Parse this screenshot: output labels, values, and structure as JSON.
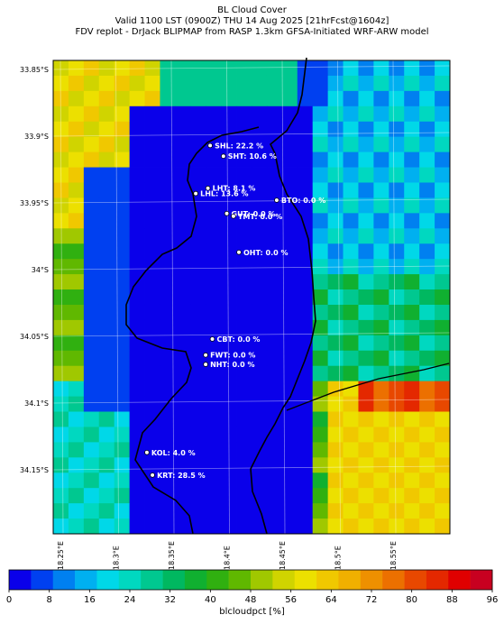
{
  "header": {
    "line1": "BL Cloud Cover",
    "line2": "Valid 1100 LST (0900Z) THU 14 Aug 2025 [21hrFcst@1604z]",
    "line3": "FDV replot - DrJack BLIPMAP from RASP 1.3km GFSA-Initiated WRF-ARW model"
  },
  "axes": {
    "lat_ticks": [
      "33.85°S",
      "33.9°S",
      "33.95°S",
      "34°S",
      "34.05°S",
      "34.1°S",
      "34.15°S"
    ],
    "lon_ticks": [
      "18.25°E",
      "18.3°E",
      "18.35°E",
      "18.4°E",
      "18.45°E",
      "18.5°E",
      "18.55°E"
    ]
  },
  "colorbar": {
    "label": "blcloudpct [%]",
    "ticks": [
      "0",
      "8",
      "16",
      "24",
      "32",
      "40",
      "48",
      "56",
      "64",
      "72",
      "80",
      "88",
      "96"
    ],
    "colors": [
      "#0a00ea",
      "#0040f0",
      "#0080f0",
      "#00b0f0",
      "#00d8e8",
      "#00d8c0",
      "#00c890",
      "#00b860",
      "#10b030",
      "#30b010",
      "#60b800",
      "#a0c800",
      "#d0d400",
      "#ece000",
      "#f0c800",
      "#f0b000",
      "#ee9000",
      "#ec7000",
      "#e84800",
      "#e42800",
      "#e00000",
      "#c80020"
    ]
  },
  "stations": [
    {
      "code": "SHL",
      "label": "SHL: 22.2 %",
      "lon": 18.385,
      "lat": -33.907
    },
    {
      "code": "SHT",
      "label": "SHT: 10.6 %",
      "lon": 18.397,
      "lat": -33.915
    },
    {
      "code": "LHT",
      "label": "LHT: 8.1 %",
      "lon": 18.383,
      "lat": -33.939
    },
    {
      "code": "LHL",
      "label": "LHL: 13.6 %",
      "lon": 18.372,
      "lat": -33.943
    },
    {
      "code": "BTO",
      "label": "BTO: 0.0 %",
      "lon": 18.445,
      "lat": -33.948
    },
    {
      "code": "GUT",
      "label": "GUT: 0.0 %",
      "lon": 18.4,
      "lat": -33.958
    },
    {
      "code": "TMT",
      "label": "TMT: 0.0 %",
      "lon": 18.406,
      "lat": -33.96
    },
    {
      "code": "OHT",
      "label": "OHT: 0.0 %",
      "lon": 18.411,
      "lat": -33.987
    },
    {
      "code": "CBT",
      "label": "CBT: 0.0 %",
      "lon": 18.387,
      "lat": -34.052
    },
    {
      "code": "FWT",
      "label": "FWT: 0.0 %",
      "lon": 18.381,
      "lat": -34.064
    },
    {
      "code": "NHT",
      "label": "NHT: 0.0 %",
      "lon": 18.381,
      "lat": -34.071
    },
    {
      "code": "KOL",
      "label": "KOL: 4.0 %",
      "lon": 18.328,
      "lat": -34.137
    },
    {
      "code": "KRT",
      "label": "KRT: 28.5 %",
      "lon": 18.333,
      "lat": -34.154
    }
  ]
}
